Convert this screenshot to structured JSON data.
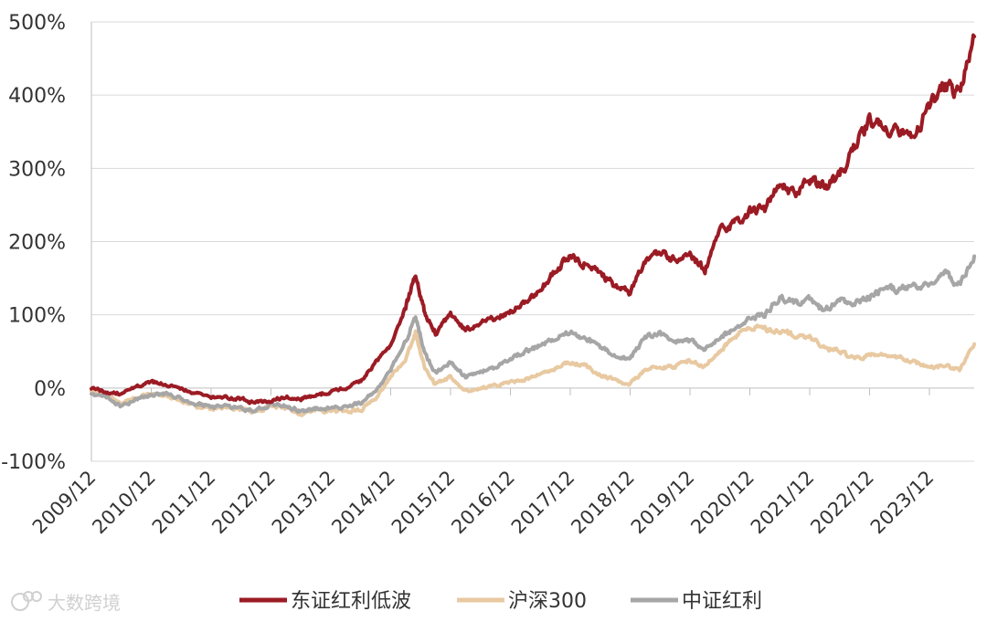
{
  "chart_data": {
    "type": "line",
    "x_start": "2009-12",
    "x_end": "2024-09",
    "xlim": [
      "2009-12",
      "2024-09"
    ],
    "ylim": [
      -100,
      500
    ],
    "y_ticks": [
      -100,
      0,
      100,
      200,
      300,
      400,
      500
    ],
    "y_tick_labels": [
      "-100%",
      "0%",
      "100%",
      "200%",
      "300%",
      "400%",
      "500%"
    ],
    "x_tick_labels": [
      "2009/12",
      "2010/12",
      "2011/12",
      "2012/12",
      "2013/12",
      "2014/12",
      "2015/12",
      "2016/12",
      "2017/12",
      "2018/12",
      "2019/12",
      "2020/12",
      "2021/12",
      "2022/12",
      "2023/12"
    ],
    "grid": "horizontal",
    "legend_position": "bottom",
    "series": [
      {
        "name": "东证红利低波",
        "color": "#9b1b24",
        "points": [
          [
            "2009-12",
            0
          ],
          [
            "2010-03",
            -5
          ],
          [
            "2010-06",
            -8
          ],
          [
            "2010-09",
            2
          ],
          [
            "2010-12",
            8
          ],
          [
            "2011-03",
            5
          ],
          [
            "2011-06",
            0
          ],
          [
            "2011-09",
            -8
          ],
          [
            "2011-12",
            -12
          ],
          [
            "2012-03",
            -12
          ],
          [
            "2012-06",
            -15
          ],
          [
            "2012-09",
            -20
          ],
          [
            "2012-12",
            -18
          ],
          [
            "2013-03",
            -12
          ],
          [
            "2013-06",
            -15
          ],
          [
            "2013-09",
            -10
          ],
          [
            "2013-12",
            -5
          ],
          [
            "2014-03",
            0
          ],
          [
            "2014-06",
            10
          ],
          [
            "2014-09",
            35
          ],
          [
            "2014-12",
            60
          ],
          [
            "2015-03",
            110
          ],
          [
            "2015-05",
            155
          ],
          [
            "2015-07",
            100
          ],
          [
            "2015-09",
            75
          ],
          [
            "2015-12",
            100
          ],
          [
            "2016-03",
            80
          ],
          [
            "2016-06",
            88
          ],
          [
            "2016-09",
            95
          ],
          [
            "2016-12",
            105
          ],
          [
            "2017-03",
            115
          ],
          [
            "2017-06",
            135
          ],
          [
            "2017-09",
            160
          ],
          [
            "2017-12",
            180
          ],
          [
            "2018-03",
            170
          ],
          [
            "2018-06",
            155
          ],
          [
            "2018-09",
            140
          ],
          [
            "2018-12",
            130
          ],
          [
            "2019-03",
            175
          ],
          [
            "2019-06",
            185
          ],
          [
            "2019-09",
            175
          ],
          [
            "2019-12",
            185
          ],
          [
            "2020-03",
            160
          ],
          [
            "2020-06",
            215
          ],
          [
            "2020-09",
            225
          ],
          [
            "2020-12",
            240
          ],
          [
            "2021-03",
            245
          ],
          [
            "2021-06",
            280
          ],
          [
            "2021-09",
            265
          ],
          [
            "2021-12",
            285
          ],
          [
            "2022-03",
            275
          ],
          [
            "2022-06",
            290
          ],
          [
            "2022-09",
            330
          ],
          [
            "2022-12",
            365
          ],
          [
            "2023-03",
            355
          ],
          [
            "2023-06",
            345
          ],
          [
            "2023-09",
            345
          ],
          [
            "2023-12",
            385
          ],
          [
            "2024-03",
            415
          ],
          [
            "2024-06",
            400
          ],
          [
            "2024-09",
            480
          ]
        ]
      },
      {
        "name": "沪深300",
        "color": "#e8c9a1",
        "points": [
          [
            "2009-12",
            -5
          ],
          [
            "2010-03",
            -10
          ],
          [
            "2010-06",
            -20
          ],
          [
            "2010-09",
            -12
          ],
          [
            "2010-12",
            -8
          ],
          [
            "2011-03",
            -10
          ],
          [
            "2011-06",
            -18
          ],
          [
            "2011-09",
            -25
          ],
          [
            "2011-12",
            -28
          ],
          [
            "2012-03",
            -26
          ],
          [
            "2012-06",
            -30
          ],
          [
            "2012-09",
            -33
          ],
          [
            "2012-12",
            -25
          ],
          [
            "2013-03",
            -28
          ],
          [
            "2013-06",
            -35
          ],
          [
            "2013-09",
            -30
          ],
          [
            "2013-12",
            -32
          ],
          [
            "2014-03",
            -32
          ],
          [
            "2014-06",
            -30
          ],
          [
            "2014-09",
            -15
          ],
          [
            "2014-12",
            15
          ],
          [
            "2015-03",
            40
          ],
          [
            "2015-05",
            75
          ],
          [
            "2015-07",
            25
          ],
          [
            "2015-09",
            5
          ],
          [
            "2015-12",
            15
          ],
          [
            "2016-03",
            -5
          ],
          [
            "2016-06",
            0
          ],
          [
            "2016-09",
            3
          ],
          [
            "2016-12",
            8
          ],
          [
            "2017-03",
            12
          ],
          [
            "2017-06",
            18
          ],
          [
            "2017-09",
            28
          ],
          [
            "2017-12",
            35
          ],
          [
            "2018-03",
            30
          ],
          [
            "2018-06",
            18
          ],
          [
            "2018-09",
            10
          ],
          [
            "2018-12",
            5
          ],
          [
            "2019-03",
            25
          ],
          [
            "2019-06",
            30
          ],
          [
            "2019-09",
            28
          ],
          [
            "2019-12",
            38
          ],
          [
            "2020-03",
            30
          ],
          [
            "2020-06",
            50
          ],
          [
            "2020-09",
            70
          ],
          [
            "2020-12",
            85
          ],
          [
            "2021-03",
            80
          ],
          [
            "2021-06",
            78
          ],
          [
            "2021-09",
            72
          ],
          [
            "2021-12",
            70
          ],
          [
            "2022-03",
            55
          ],
          [
            "2022-06",
            50
          ],
          [
            "2022-09",
            40
          ],
          [
            "2022-12",
            45
          ],
          [
            "2023-03",
            48
          ],
          [
            "2023-06",
            42
          ],
          [
            "2023-09",
            35
          ],
          [
            "2023-12",
            28
          ],
          [
            "2024-03",
            30
          ],
          [
            "2024-06",
            25
          ],
          [
            "2024-09",
            60
          ]
        ]
      },
      {
        "name": "中证红利",
        "color": "#a6a6a6",
        "points": [
          [
            "2009-12",
            -8
          ],
          [
            "2010-03",
            -12
          ],
          [
            "2010-06",
            -25
          ],
          [
            "2010-09",
            -15
          ],
          [
            "2010-12",
            -10
          ],
          [
            "2011-03",
            -8
          ],
          [
            "2011-06",
            -15
          ],
          [
            "2011-09",
            -22
          ],
          [
            "2011-12",
            -25
          ],
          [
            "2012-03",
            -24
          ],
          [
            "2012-06",
            -28
          ],
          [
            "2012-09",
            -32
          ],
          [
            "2012-12",
            -22
          ],
          [
            "2013-03",
            -25
          ],
          [
            "2013-06",
            -32
          ],
          [
            "2013-09",
            -28
          ],
          [
            "2013-12",
            -28
          ],
          [
            "2014-03",
            -25
          ],
          [
            "2014-06",
            -20
          ],
          [
            "2014-09",
            -5
          ],
          [
            "2014-12",
            25
          ],
          [
            "2015-03",
            65
          ],
          [
            "2015-05",
            95
          ],
          [
            "2015-07",
            45
          ],
          [
            "2015-09",
            20
          ],
          [
            "2015-12",
            35
          ],
          [
            "2016-03",
            15
          ],
          [
            "2016-06",
            22
          ],
          [
            "2016-09",
            28
          ],
          [
            "2016-12",
            40
          ],
          [
            "2017-03",
            50
          ],
          [
            "2017-06",
            58
          ],
          [
            "2017-09",
            68
          ],
          [
            "2017-12",
            75
          ],
          [
            "2018-03",
            68
          ],
          [
            "2018-06",
            55
          ],
          [
            "2018-09",
            45
          ],
          [
            "2018-12",
            40
          ],
          [
            "2019-03",
            70
          ],
          [
            "2019-06",
            75
          ],
          [
            "2019-09",
            62
          ],
          [
            "2019-12",
            65
          ],
          [
            "2020-03",
            55
          ],
          [
            "2020-06",
            70
          ],
          [
            "2020-09",
            80
          ],
          [
            "2020-12",
            95
          ],
          [
            "2021-03",
            100
          ],
          [
            "2021-06",
            125
          ],
          [
            "2021-09",
            115
          ],
          [
            "2021-12",
            120
          ],
          [
            "2022-03",
            105
          ],
          [
            "2022-06",
            120
          ],
          [
            "2022-09",
            115
          ],
          [
            "2022-12",
            125
          ],
          [
            "2023-03",
            135
          ],
          [
            "2023-06",
            135
          ],
          [
            "2023-09",
            138
          ],
          [
            "2023-12",
            140
          ],
          [
            "2024-03",
            160
          ],
          [
            "2024-06",
            140
          ],
          [
            "2024-09",
            180
          ]
        ]
      }
    ]
  },
  "watermark": {
    "icon": "camera-icon",
    "text": "大数跨境"
  }
}
